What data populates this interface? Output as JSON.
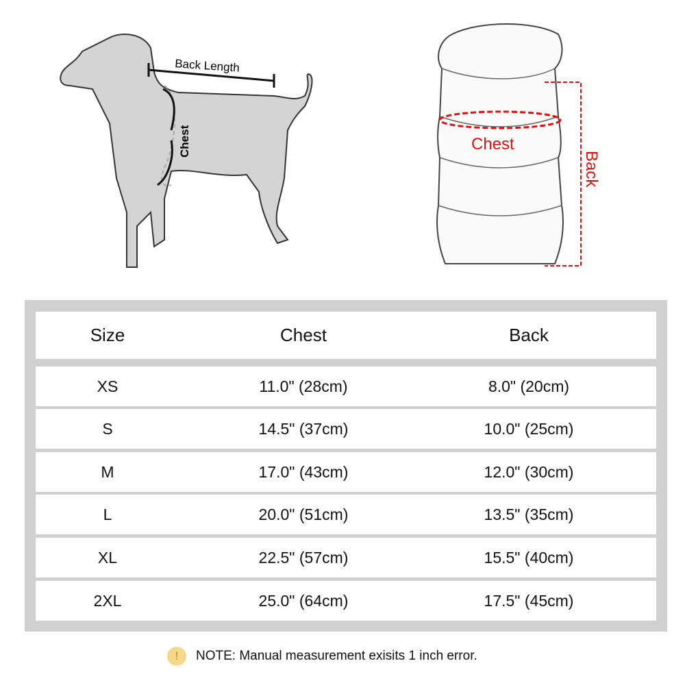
{
  "dog_diagram": {
    "back_length_label": "Back Length",
    "chest_label": "Chest"
  },
  "coat_diagram": {
    "chest_label": "Chest",
    "back_label": "Back",
    "accent_color": "#e01010"
  },
  "table": {
    "headers": [
      "Size",
      "Chest",
      "Back"
    ],
    "rows": [
      [
        "XS",
        "11.0\" (28cm)",
        "8.0\" (20cm)"
      ],
      [
        "S",
        "14.5\" (37cm)",
        "10.0\" (25cm)"
      ],
      [
        "M",
        "17.0\" (43cm)",
        "12.0\" (30cm)"
      ],
      [
        "L",
        "20.0\" (51cm)",
        "13.5\" (35cm)"
      ],
      [
        "XL",
        "22.5\" (57cm)",
        "15.5\" (40cm)"
      ],
      [
        "2XL",
        "25.0\" (64cm)",
        "17.5\" (45cm)"
      ]
    ]
  },
  "note": {
    "icon": "exclamation-icon",
    "text": "NOTE: Manual measurement exisits 1 inch error."
  }
}
